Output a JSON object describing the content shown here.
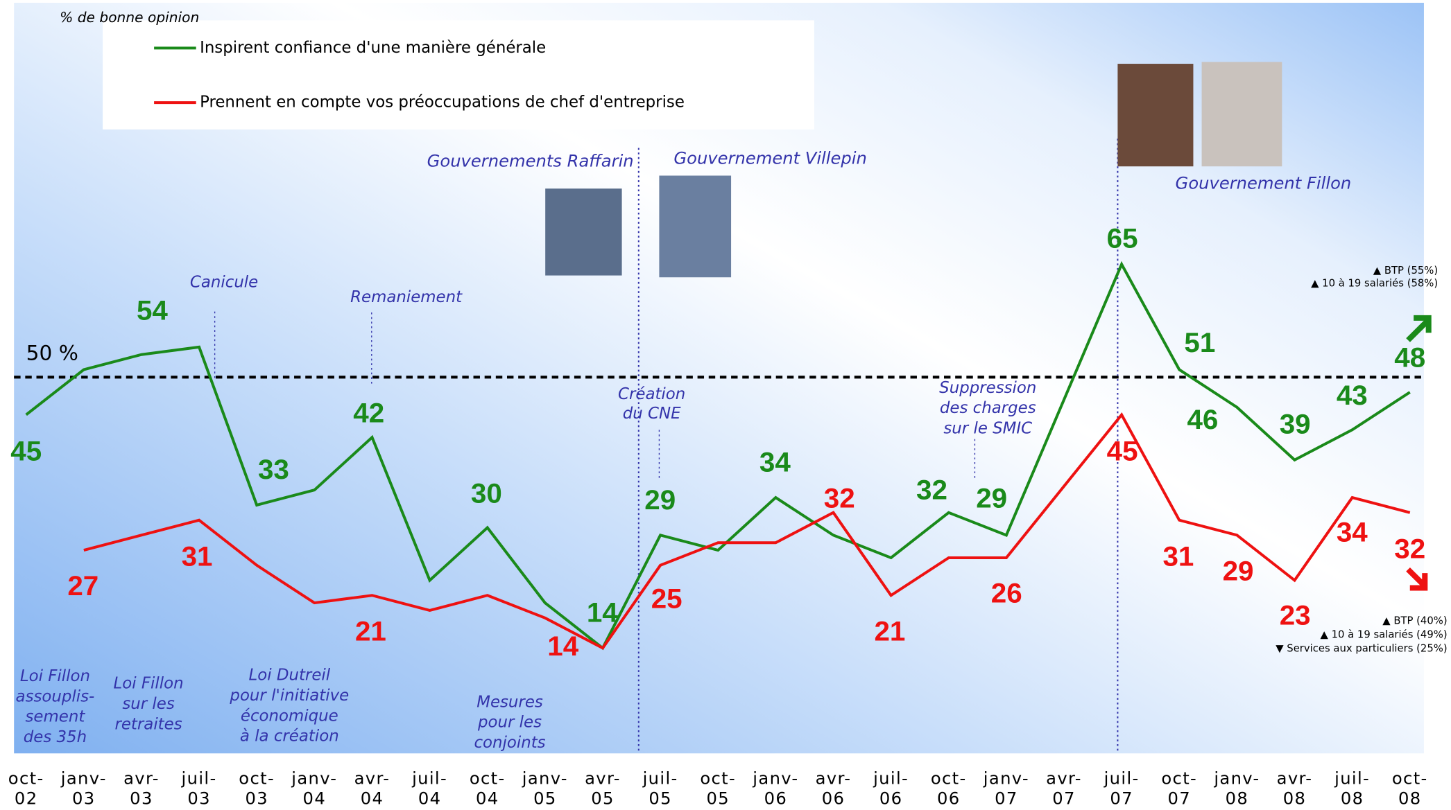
{
  "chart_data": {
    "type": "line",
    "subtitle": "% de bonne opinion",
    "categories": [
      "oct-02",
      "janv-03",
      "avr-03",
      "juil-03",
      "oct-03",
      "janv-04",
      "avr-04",
      "juil-04",
      "oct-04",
      "janv-05",
      "avr-05",
      "juil-05",
      "oct-05",
      "janv-06",
      "avr-06",
      "juil-06",
      "oct-06",
      "janv-07",
      "avr-07",
      "juil-07",
      "oct-07",
      "janv-08",
      "avr-08",
      "juil-08",
      "oct-08"
    ],
    "series": [
      {
        "name": "Inspirent confiance d'une manière générale",
        "color": "#1a8a1a",
        "values": [
          45,
          51,
          53,
          54,
          33,
          35,
          42,
          23,
          30,
          20,
          14,
          29,
          27,
          34,
          29,
          26,
          32,
          29,
          47,
          65,
          51,
          46,
          39,
          43,
          48
        ]
      },
      {
        "name": "Prennent en compte vos préoccupations de chef d'entreprise",
        "color": "#ee1111",
        "values": [
          null,
          27,
          29,
          31,
          25,
          20,
          21,
          19,
          21,
          18,
          14,
          25,
          28,
          28,
          32,
          21,
          26,
          26,
          35.5,
          45,
          31,
          29,
          23,
          34,
          32
        ]
      }
    ],
    "ylim": [
      0,
      100
    ],
    "reference_line": {
      "value": 50,
      "label": "50 %"
    },
    "annotations": [
      {
        "lines": [
          "Gouvernements Raffarin"
        ]
      },
      {
        "lines": [
          "Gouvernement Villepin"
        ]
      },
      {
        "lines": [
          "Gouvernement Fillon"
        ]
      },
      {
        "lines": [
          "Canicule"
        ]
      },
      {
        "lines": [
          "Remaniement"
        ]
      },
      {
        "lines": [
          "Création",
          "du CNE"
        ]
      },
      {
        "lines": [
          "Suppression",
          "des charges",
          "sur le SMIC"
        ]
      },
      {
        "lines": [
          "Loi Fillon",
          "assouplis-",
          "sement",
          "des 35h"
        ]
      },
      {
        "lines": [
          "Loi Fillon",
          "sur les",
          "retraites"
        ]
      },
      {
        "lines": [
          "Loi Dutreil",
          "pour l'initiative",
          "économique",
          "à la création"
        ]
      },
      {
        "lines": [
          "Mesures",
          "pour les",
          "conjoints"
        ]
      }
    ],
    "notes": [
      "▲ BTP (55%)",
      "▲ 10 à 19 salariés (58%)",
      "▲ BTP (40%)",
      "▲ 10 à 19 salariés (49%)",
      "▼ Services aux particuliers (25%)"
    ]
  }
}
